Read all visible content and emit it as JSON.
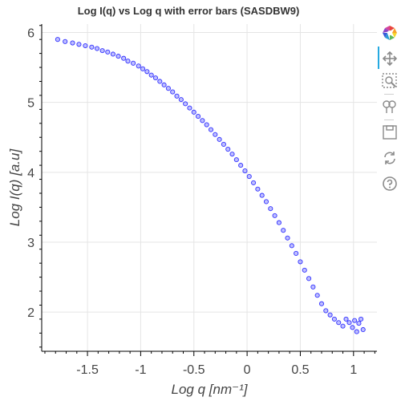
{
  "chart_data": {
    "type": "scatter",
    "title": "Log I(q) vs Log q with error bars (SASDBW9)",
    "xlabel": "Log q [nm⁻¹]",
    "ylabel": "Log I(q) [a.u]",
    "xlim": [
      -1.93,
      1.22
    ],
    "ylim": [
      1.44,
      6.12
    ],
    "xticks": [
      -1.5,
      -1,
      -0.5,
      0,
      0.5,
      1
    ],
    "xtick_labels": [
      "-1.5",
      "-1",
      "-0.5",
      "0",
      "0.5",
      "1"
    ],
    "yticks": [
      2,
      3,
      4,
      5,
      6
    ],
    "ytick_labels": [
      "2",
      "3",
      "4",
      "5",
      "6"
    ],
    "grid": true,
    "marker_color": "#3333ff",
    "marker_fill": "#8080ff",
    "series": [
      {
        "x": [
          -1.78,
          -1.71,
          -1.64,
          -1.58,
          -1.52,
          -1.46,
          -1.41,
          -1.36,
          -1.31,
          -1.26,
          -1.21,
          -1.16,
          -1.12,
          -1.07,
          -1.02,
          -0.98,
          -0.94,
          -0.9,
          -0.86,
          -0.82,
          -0.78,
          -0.74,
          -0.7,
          -0.66,
          -0.62,
          -0.58,
          -0.54,
          -0.5,
          -0.46,
          -0.42,
          -0.38,
          -0.34,
          -0.3,
          -0.26,
          -0.22,
          -0.18,
          -0.14,
          -0.1,
          -0.06,
          -0.02,
          0.02,
          0.06,
          0.1,
          0.14,
          0.18,
          0.22,
          0.26,
          0.3,
          0.34,
          0.38,
          0.42,
          0.46,
          0.5,
          0.54,
          0.58,
          0.62,
          0.66,
          0.7,
          0.74,
          0.78,
          0.82,
          0.86,
          0.9,
          0.93,
          0.96,
          0.99,
          1.01,
          1.03,
          1.05,
          1.07,
          1.09
        ],
        "y": [
          5.9,
          5.87,
          5.85,
          5.83,
          5.81,
          5.79,
          5.77,
          5.74,
          5.72,
          5.69,
          5.66,
          5.63,
          5.59,
          5.56,
          5.52,
          5.48,
          5.44,
          5.39,
          5.35,
          5.3,
          5.25,
          5.2,
          5.15,
          5.09,
          5.04,
          4.98,
          4.92,
          4.86,
          4.8,
          4.74,
          4.68,
          4.61,
          4.54,
          4.47,
          4.4,
          4.33,
          4.26,
          4.18,
          4.1,
          4.02,
          3.94,
          3.85,
          3.76,
          3.67,
          3.58,
          3.48,
          3.38,
          3.28,
          3.17,
          3.06,
          2.95,
          2.84,
          2.72,
          2.6,
          2.48,
          2.36,
          2.24,
          2.12,
          2.02,
          1.96,
          1.9,
          1.85,
          1.8,
          1.9,
          1.85,
          1.78,
          1.88,
          1.72,
          1.84,
          1.9,
          1.75
        ]
      }
    ]
  },
  "toolbar": {
    "tools": [
      "bokeh-logo-icon",
      "pan-icon",
      "box-zoom-icon",
      "wheel-zoom-icon",
      "save-icon",
      "reset-icon",
      "help-icon"
    ]
  }
}
